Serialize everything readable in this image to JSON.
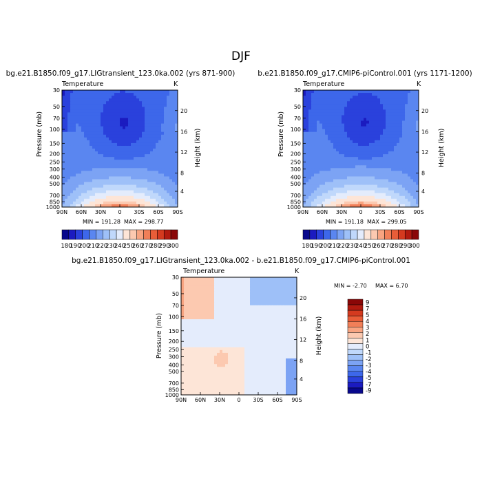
{
  "figure": {
    "season": "DJF"
  },
  "colors": {
    "temperature_scale": [
      "#08088c",
      "#1b1bc0",
      "#2a41dc",
      "#3d67ea",
      "#5a86f0",
      "#7ca3f4",
      "#9ec0f8",
      "#c0d8fb",
      "#e4ecfc",
      "#fde5d7",
      "#fcc9b0",
      "#f8a481",
      "#f17f58",
      "#e85d38",
      "#d43a1f",
      "#b11a0f",
      "#8a0707"
    ],
    "difference_scale": [
      "#08088c",
      "#1b1bc0",
      "#2a41dc",
      "#3d67ea",
      "#5a86f0",
      "#7ca3f4",
      "#9ec0f8",
      "#c0d8fb",
      "#e4ecfc",
      "#fde5d7",
      "#fcc9b0",
      "#f8a481",
      "#f17f58",
      "#e85d38",
      "#d43a1f",
      "#b11a0f",
      "#8a0707"
    ]
  },
  "chart_data": [
    {
      "type": "heatmap",
      "title": "bg.e21.B1850.f09_g17.LIGtransient_123.0ka.002 (yrs 871-900)",
      "subtitle_left": "Temperature",
      "subtitle_right": "K",
      "ylabel": "Pressure (mb)",
      "ylabel_right": "Height (km)",
      "x_ticks": [
        "90N",
        "60N",
        "30N",
        "0",
        "30S",
        "60S",
        "90S"
      ],
      "y_ticks": [
        "30",
        "50",
        "70",
        "100",
        "150",
        "200",
        "250",
        "300",
        "400",
        "500",
        "700",
        "850",
        "1000"
      ],
      "y_ticks_right": [
        "20",
        "16",
        "12",
        "8",
        "4"
      ],
      "min_label": "MIN = 191.28",
      "max_label": "MAX = 298.77",
      "min": 191.28,
      "max": 298.77,
      "colorbar_labels": [
        "180",
        "190",
        "200",
        "210",
        "220",
        "230",
        "240",
        "250",
        "260",
        "270",
        "280",
        "290",
        "300"
      ],
      "field": "temperature"
    },
    {
      "type": "heatmap",
      "title": "b.e21.B1850.f09_g17.CMIP6-piControl.001 (yrs 1171-1200)",
      "subtitle_left": "Temperature",
      "subtitle_right": "K",
      "ylabel": "Pressure (mb)",
      "ylabel_right": "Height (km)",
      "x_ticks": [
        "90N",
        "60N",
        "30N",
        "0",
        "30S",
        "60S",
        "90S"
      ],
      "y_ticks": [
        "30",
        "50",
        "70",
        "100",
        "150",
        "200",
        "250",
        "300",
        "400",
        "500",
        "700",
        "850",
        "1000"
      ],
      "y_ticks_right": [
        "20",
        "16",
        "12",
        "8",
        "4"
      ],
      "min_label": "MIN = 191.18",
      "max_label": "MAX = 299.05",
      "min": 191.18,
      "max": 299.05,
      "colorbar_labels": [
        "180",
        "190",
        "200",
        "210",
        "220",
        "230",
        "240",
        "250",
        "260",
        "270",
        "280",
        "290",
        "300"
      ],
      "field": "temperature"
    },
    {
      "type": "heatmap",
      "title": "bg.e21.B1850.f09_g17.LIGtransient_123.0ka.002 - b.e21.B1850.f09_g17.CMIP6-piControl.001",
      "subtitle_left": "Temperature",
      "subtitle_right": "K",
      "ylabel": "Pressure (mb)",
      "ylabel_right": "Height (km)",
      "x_ticks": [
        "90N",
        "60N",
        "30N",
        "0",
        "30S",
        "60S",
        "90S"
      ],
      "y_ticks": [
        "30",
        "50",
        "70",
        "100",
        "150",
        "200",
        "250",
        "300",
        "400",
        "500",
        "700",
        "850",
        "1000"
      ],
      "y_ticks_right": [
        "20",
        "16",
        "12",
        "8",
        "4"
      ],
      "min_label": "MIN = -2.70",
      "max_label": "MAX = 6.70",
      "min": -2.7,
      "max": 6.7,
      "colorbar_labels": [
        "9",
        "7",
        "5",
        "4",
        "3",
        "2",
        "1",
        "0",
        "-1",
        "-2",
        "-3",
        "-4",
        "-5",
        "-7",
        "-9"
      ],
      "field": "difference"
    }
  ]
}
